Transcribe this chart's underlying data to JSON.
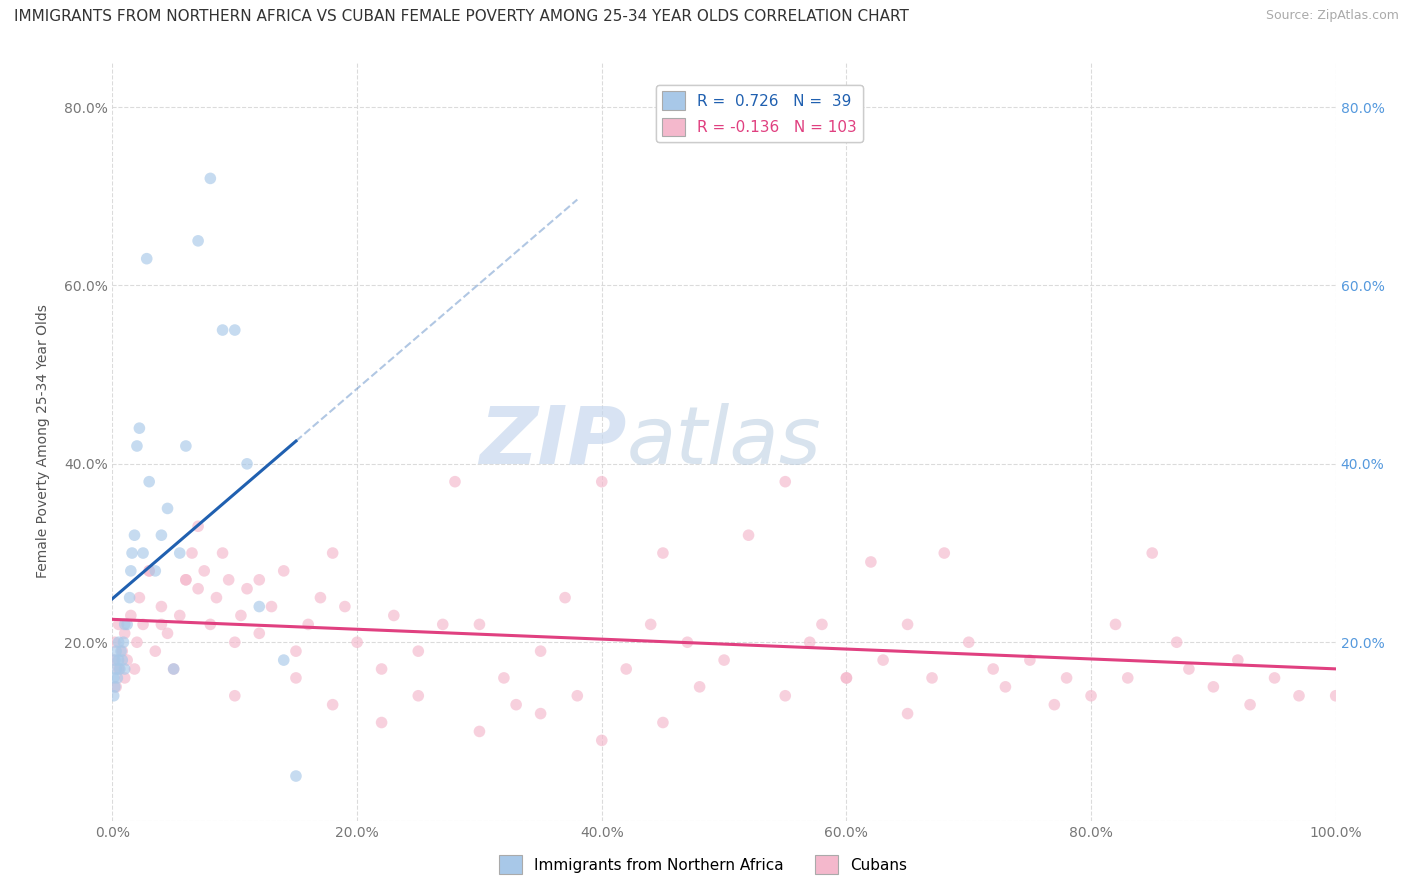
{
  "title": "IMMIGRANTS FROM NORTHERN AFRICA VS CUBAN FEMALE POVERTY AMONG 25-34 YEAR OLDS CORRELATION CHART",
  "source": "Source: ZipAtlas.com",
  "ylabel": "Female Poverty Among 25-34 Year Olds",
  "watermark_zip": "ZIP",
  "watermark_atlas": "atlas",
  "blue_R": 0.726,
  "blue_N": 39,
  "pink_R": -0.136,
  "pink_N": 103,
  "blue_color": "#a8c8e8",
  "pink_color": "#f4b8cc",
  "blue_line_color": "#2060b0",
  "pink_line_color": "#e04080",
  "legend_blue_label": "Immigrants from Northern Africa",
  "legend_pink_label": "Cubans",
  "xlim": [
    0.0,
    100.0
  ],
  "ylim": [
    0.0,
    85.0
  ],
  "blue_scatter_x": [
    0.1,
    0.1,
    0.2,
    0.2,
    0.3,
    0.3,
    0.4,
    0.5,
    0.5,
    0.6,
    0.7,
    0.8,
    0.9,
    1.0,
    1.0,
    1.2,
    1.4,
    1.5,
    1.6,
    1.8,
    2.0,
    2.2,
    2.5,
    3.0,
    3.5,
    4.0,
    4.5,
    5.0,
    5.5,
    6.0,
    7.0,
    8.0,
    9.0,
    10.0,
    11.0,
    12.0,
    14.0,
    15.0,
    2.8
  ],
  "blue_scatter_y": [
    14.0,
    16.0,
    15.0,
    18.0,
    17.0,
    19.0,
    16.0,
    18.0,
    20.0,
    17.0,
    19.0,
    18.0,
    20.0,
    22.0,
    17.0,
    22.0,
    25.0,
    28.0,
    30.0,
    32.0,
    42.0,
    44.0,
    30.0,
    38.0,
    28.0,
    32.0,
    35.0,
    17.0,
    30.0,
    42.0,
    65.0,
    72.0,
    55.0,
    55.0,
    40.0,
    24.0,
    18.0,
    5.0,
    63.0
  ],
  "pink_scatter_x": [
    0.1,
    0.2,
    0.3,
    0.5,
    0.5,
    0.8,
    1.0,
    1.0,
    1.2,
    1.5,
    1.8,
    2.0,
    2.2,
    2.5,
    3.0,
    3.5,
    4.0,
    4.5,
    5.0,
    5.5,
    6.0,
    6.5,
    7.0,
    7.5,
    8.0,
    8.5,
    9.0,
    9.5,
    10.0,
    10.5,
    11.0,
    12.0,
    13.0,
    14.0,
    15.0,
    16.0,
    17.0,
    18.0,
    19.0,
    20.0,
    22.0,
    23.0,
    25.0,
    27.0,
    28.0,
    30.0,
    32.0,
    33.0,
    35.0,
    37.0,
    38.0,
    40.0,
    42.0,
    44.0,
    45.0,
    47.0,
    48.0,
    50.0,
    52.0,
    55.0,
    57.0,
    58.0,
    60.0,
    62.0,
    63.0,
    65.0,
    67.0,
    68.0,
    70.0,
    72.0,
    73.0,
    75.0,
    77.0,
    78.0,
    80.0,
    82.0,
    83.0,
    85.0,
    87.0,
    88.0,
    90.0,
    92.0,
    93.0,
    95.0,
    97.0,
    100.0,
    3.0,
    4.0,
    6.0,
    7.0,
    10.0,
    12.0,
    15.0,
    18.0,
    22.0,
    25.0,
    30.0,
    35.0,
    40.0,
    45.0,
    55.0,
    60.0,
    65.0
  ],
  "pink_scatter_y": [
    18.0,
    20.0,
    15.0,
    22.0,
    17.0,
    19.0,
    16.0,
    21.0,
    18.0,
    23.0,
    17.0,
    20.0,
    25.0,
    22.0,
    28.0,
    19.0,
    24.0,
    21.0,
    17.0,
    23.0,
    27.0,
    30.0,
    26.0,
    28.0,
    22.0,
    25.0,
    30.0,
    27.0,
    20.0,
    23.0,
    26.0,
    21.0,
    24.0,
    28.0,
    19.0,
    22.0,
    25.0,
    30.0,
    24.0,
    20.0,
    17.0,
    23.0,
    19.0,
    22.0,
    38.0,
    22.0,
    16.0,
    13.0,
    19.0,
    25.0,
    14.0,
    38.0,
    17.0,
    22.0,
    30.0,
    20.0,
    15.0,
    18.0,
    32.0,
    14.0,
    20.0,
    22.0,
    16.0,
    29.0,
    18.0,
    22.0,
    16.0,
    30.0,
    20.0,
    17.0,
    15.0,
    18.0,
    13.0,
    16.0,
    14.0,
    22.0,
    16.0,
    30.0,
    20.0,
    17.0,
    15.0,
    18.0,
    13.0,
    16.0,
    14.0,
    14.0,
    28.0,
    22.0,
    27.0,
    33.0,
    14.0,
    27.0,
    16.0,
    13.0,
    11.0,
    14.0,
    10.0,
    12.0,
    9.0,
    11.0,
    38.0,
    16.0,
    12.0
  ],
  "xticks": [
    0.0,
    20.0,
    40.0,
    60.0,
    80.0,
    100.0
  ],
  "xtick_labels": [
    "0.0%",
    "20.0%",
    "40.0%",
    "60.0%",
    "80.0%",
    "100.0%"
  ],
  "yticks": [
    0.0,
    20.0,
    40.0,
    60.0,
    80.0
  ],
  "ytick_labels_left": [
    "",
    "20.0%",
    "40.0%",
    "60.0%",
    "80.0%"
  ],
  "ytick_labels_right": [
    "",
    "20.0%",
    "40.0%",
    "60.0%",
    "80.0%"
  ],
  "grid_color": "#d8d8d8",
  "background_color": "#ffffff",
  "title_fontsize": 11,
  "axis_label_fontsize": 10,
  "tick_fontsize": 10,
  "legend_fontsize": 11,
  "scatter_alpha": 0.65,
  "scatter_size": 70
}
